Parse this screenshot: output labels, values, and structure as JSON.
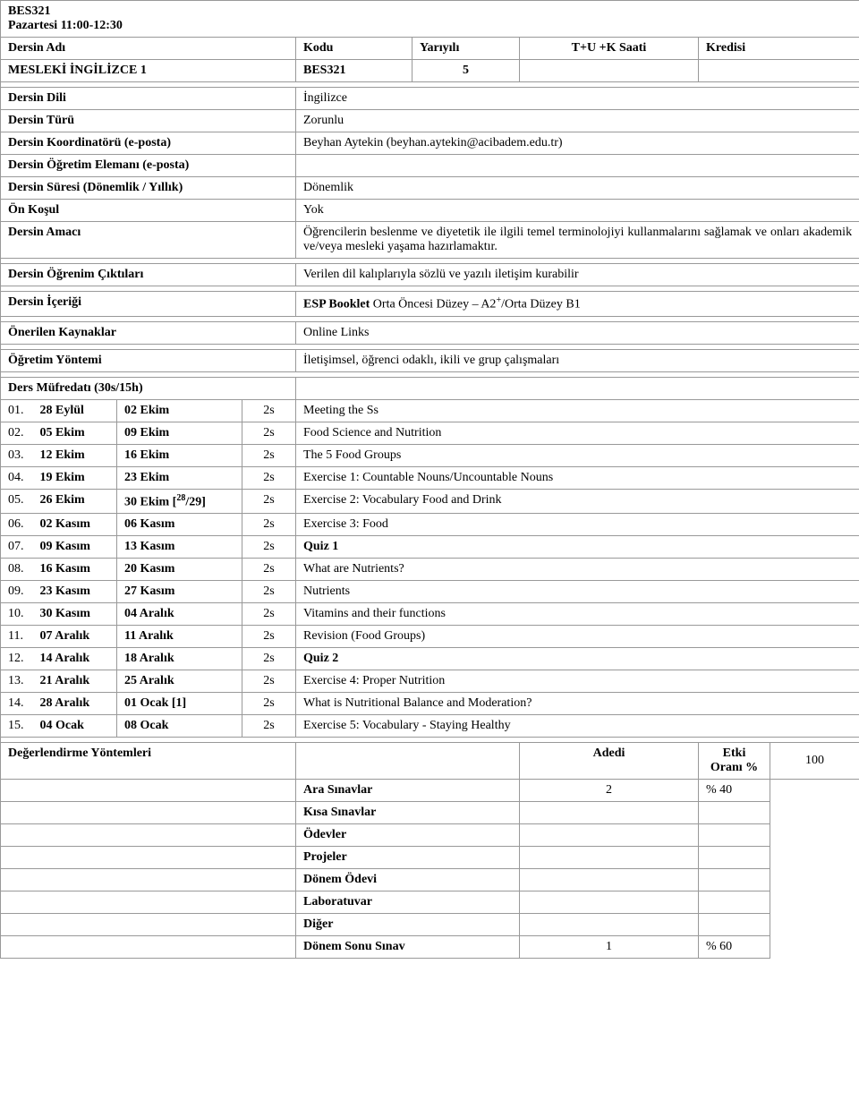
{
  "header": {
    "code": "BES321",
    "schedule": "Pazartesi 11:00-12:30",
    "labels": {
      "name": "Dersin Adı",
      "code": "Kodu",
      "semester": "Yarıyılı",
      "hours": "T+U +K Saati",
      "credit": "Kredisi"
    },
    "course_name": "MESLEKİ İNGİLİZCE 1",
    "course_code": "BES321",
    "semester": "5"
  },
  "info": {
    "rows": [
      {
        "label": "Dersin Dili",
        "value": "İngilizce"
      },
      {
        "label": "Dersin Türü",
        "value": "Zorunlu"
      },
      {
        "label": "Dersin Koordinatörü (e-posta)",
        "value": "Beyhan Aytekin  (beyhan.aytekin@acibadem.edu.tr)"
      },
      {
        "label": "Dersin Öğretim Elemanı (e-posta)",
        "value": ""
      },
      {
        "label": "Dersin Süresi (Dönemlik / Yıllık)",
        "value": "Dönemlik"
      },
      {
        "label": "Ön Koşul",
        "value": "Yok"
      },
      {
        "label": "Dersin Amacı",
        "value": "Öğrencilerin beslenme ve diyetetik ile ilgili temel terminolojiyi kullanmalarını sağlamak ve onları akademik ve/veya mesleki yaşama hazırlamaktır."
      }
    ],
    "outcomes": {
      "label": "Dersin Öğrenim Çıktıları",
      "value": "Verilen dil kalıplarıyla sözlü ve yazılı iletişim kurabilir"
    },
    "content": {
      "label": "Dersin İçeriği",
      "value_prefix": "ESP Booklet ",
      "value_suffix": "Orta Öncesi Düzey – A2",
      "value_tail": "/Orta Düzey B1"
    },
    "resources": {
      "label": "Önerilen Kaynaklar",
      "value": "Online Links"
    },
    "method": {
      "label": "Öğretim Yöntemi",
      "value": "İletişimsel, öğrenci odaklı, ikili ve grup çalışmaları"
    }
  },
  "curriculum": {
    "title": "Ders Müfredatı (30s/15h)",
    "rows": [
      {
        "n": "01.",
        "d1": "28 Eylül",
        "d2": "02 Ekim",
        "h": "2s",
        "topic": "Meeting the Ss",
        "note": ""
      },
      {
        "n": "02.",
        "d1": "05 Ekim",
        "d2": "09 Ekim",
        "h": "2s",
        "topic": "Food Science and Nutrition",
        "note": ""
      },
      {
        "n": "03.",
        "d1": "12 Ekim",
        "d2": "16 Ekim",
        "h": "2s",
        "topic": "The 5 Food Groups",
        "note": ""
      },
      {
        "n": "04.",
        "d1": "19 Ekim",
        "d2": "23 Ekim",
        "h": "2s",
        "topic": "Exercise 1: Countable Nouns/Uncountable Nouns",
        "note": ""
      },
      {
        "n": "05.",
        "d1": "26 Ekim",
        "d2": "30 Ekim [",
        "h": "2s",
        "topic": "Exercise 2: Vocabulary Food and Drink",
        "note": "28/29]"
      },
      {
        "n": "06.",
        "d1": "02 Kasım",
        "d2": "06 Kasım",
        "h": "2s",
        "topic": "Exercise 3: Food",
        "note": ""
      },
      {
        "n": "07.",
        "d1": "09 Kasım",
        "d2": "13 Kasım",
        "h": "2s",
        "topic": "Quiz 1",
        "note": "",
        "bold": true
      },
      {
        "n": "08.",
        "d1": "16 Kasım",
        "d2": "20 Kasım",
        "h": "2s",
        "topic": "What are Nutrients?",
        "note": ""
      },
      {
        "n": "09.",
        "d1": "23 Kasım",
        "d2": "27 Kasım",
        "h": "2s",
        "topic": "Nutrients",
        "note": ""
      },
      {
        "n": "10.",
        "d1": "30 Kasım",
        "d2": "04 Aralık",
        "h": "2s",
        "topic": "Vitamins and their functions",
        "note": ""
      },
      {
        "n": "11.",
        "d1": "07 Aralık",
        "d2": "11 Aralık",
        "h": "2s",
        "topic": "Revision (Food Groups)",
        "note": ""
      },
      {
        "n": "12.",
        "d1": "14 Aralık",
        "d2": "18 Aralık",
        "h": "2s",
        "topic": "Quiz 2",
        "note": "",
        "bold": true
      },
      {
        "n": "13.",
        "d1": "21 Aralık",
        "d2": "25 Aralık",
        "h": "2s",
        "topic": "Exercise 4: Proper Nutrition",
        "note": ""
      },
      {
        "n": "14.",
        "d1": "28 Aralık",
        "d2": "01 Ocak [1]",
        "h": "2s",
        "topic": "What is Nutritional Balance and Moderation?",
        "note": ""
      },
      {
        "n": "15.",
        "d1": "04 Ocak",
        "d2": "08 Ocak",
        "h": "2s",
        "topic": "Exercise 5: Vocabulary - Staying Healthy",
        "note": ""
      }
    ]
  },
  "assessment": {
    "label": "Değerlendirme Yöntemleri",
    "count_label": "Adedi",
    "weight_label": "Etki Oranı %",
    "total": "100",
    "rows": [
      {
        "name": "Ara Sınavlar",
        "count": "2",
        "weight": "% 40"
      },
      {
        "name": "Kısa Sınavlar",
        "count": "",
        "weight": ""
      },
      {
        "name": "Ödevler",
        "count": "",
        "weight": ""
      },
      {
        "name": "Projeler",
        "count": "",
        "weight": ""
      },
      {
        "name": "Dönem Ödevi",
        "count": "",
        "weight": ""
      },
      {
        "name": "Laboratuvar",
        "count": "",
        "weight": ""
      },
      {
        "name": "Diğer",
        "count": "",
        "weight": ""
      },
      {
        "name": "Dönem Sonu Sınav",
        "count": "1",
        "weight": "% 60"
      }
    ]
  }
}
